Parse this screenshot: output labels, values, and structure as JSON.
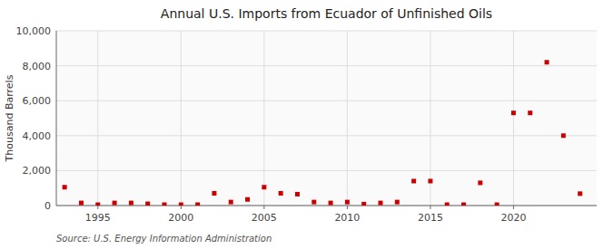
{
  "chart_data": {
    "type": "scatter",
    "title": "Annual U.S. Imports from Ecuador of Unfinished Oils",
    "y_label": "Thousand Barrels",
    "source": "Source: U.S. Energy Information Administration",
    "color": "#cc0000",
    "marker": "square",
    "grid": true,
    "x": [
      1993,
      1994,
      1995,
      1996,
      1997,
      1998,
      1999,
      2000,
      2001,
      2002,
      2003,
      2004,
      2005,
      2006,
      2007,
      2008,
      2009,
      2010,
      2011,
      2012,
      2013,
      2014,
      2015,
      2016,
      2017,
      2018,
      2019,
      2020,
      2021,
      2022,
      2023,
      2024
    ],
    "values": [
      1050,
      150,
      50,
      150,
      150,
      100,
      50,
      50,
      50,
      700,
      200,
      350,
      1050,
      700,
      650,
      200,
      150,
      200,
      80,
      150,
      200,
      1400,
      1400,
      50,
      50,
      1300,
      50,
      5300,
      5300,
      8200,
      4000,
      680
    ],
    "xlim": [
      1992.5,
      2025
    ],
    "ylim": [
      0,
      10000
    ],
    "xticks": [
      1995,
      2000,
      2005,
      2010,
      2015,
      2020
    ],
    "yticks": [
      0,
      {
        "value": 2000,
        "label": "2,000"
      },
      {
        "value": 4000,
        "label": "4,000"
      },
      {
        "value": 6000,
        "label": "6,000"
      },
      {
        "value": 8000,
        "label": "8,000"
      },
      {
        "value": 10000,
        "label": "10,000"
      }
    ]
  }
}
